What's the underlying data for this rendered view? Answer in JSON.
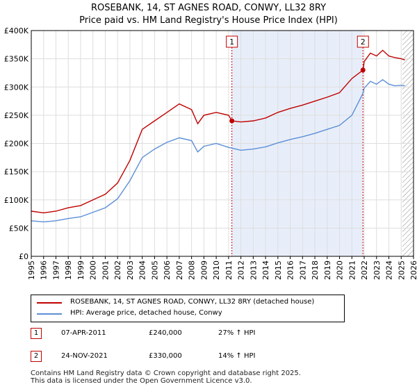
{
  "title": "ROSEBANK, 14, ST AGNES ROAD, CONWY, LL32 8RY",
  "subtitle": "Price paid vs. HM Land Registry's House Price Index (HPI)",
  "colors": {
    "price": "#c00000",
    "hpi": "#5b8ed6",
    "shade": "#e8eef9",
    "grid": "#dddddd",
    "hatch": "#999999"
  },
  "chart_data": {
    "type": "line",
    "title": "ROSEBANK, 14, ST AGNES ROAD, CONWY, LL32 8RY",
    "subtitle": "Price paid vs. HM Land Registry's House Price Index (HPI)",
    "xlabel": "",
    "ylabel": "",
    "xlim": [
      1995,
      2026
    ],
    "ylim": [
      0,
      400000
    ],
    "x_ticks": [
      "1995",
      "1996",
      "1997",
      "1998",
      "1999",
      "2000",
      "2001",
      "2002",
      "2003",
      "2004",
      "2005",
      "2006",
      "2007",
      "2008",
      "2009",
      "2010",
      "2011",
      "2012",
      "2013",
      "2014",
      "2015",
      "2016",
      "2017",
      "2018",
      "2019",
      "2020",
      "2021",
      "2022",
      "2023",
      "2024",
      "2025",
      "2026"
    ],
    "y_ticks": [
      {
        "value": 0,
        "label": "£0"
      },
      {
        "value": 50000,
        "label": "£50K"
      },
      {
        "value": 100000,
        "label": "£100K"
      },
      {
        "value": 150000,
        "label": "£150K"
      },
      {
        "value": 200000,
        "label": "£200K"
      },
      {
        "value": 250000,
        "label": "£250K"
      },
      {
        "value": 300000,
        "label": "£300K"
      },
      {
        "value": 350000,
        "label": "£350K"
      },
      {
        "value": 400000,
        "label": "£400K"
      }
    ],
    "grid": true,
    "shaded_span": [
      2011.27,
      2021.9
    ],
    "hatched_from": 2025.1,
    "series": [
      {
        "name": "ROSEBANK, 14, ST AGNES ROAD, CONWY, LL32 8RY (detached house)",
        "x": [
          1995,
          1996,
          1997,
          1998,
          1999,
          2000,
          2001,
          2002,
          2003,
          2004,
          2005,
          2006,
          2007,
          2008,
          2008.5,
          2009,
          2010,
          2011,
          2011.27,
          2012,
          2013,
          2014,
          2015,
          2016,
          2017,
          2018,
          2019,
          2020,
          2021,
          2021.9,
          2022,
          2022.5,
          2023,
          2023.5,
          2024,
          2024.5,
          2025,
          2025.3
        ],
        "values": [
          80000,
          77000,
          80000,
          86000,
          90000,
          100000,
          110000,
          130000,
          170000,
          225000,
          240000,
          255000,
          270000,
          260000,
          235000,
          250000,
          255000,
          250000,
          240000,
          238000,
          240000,
          245000,
          255000,
          262000,
          268000,
          275000,
          282000,
          290000,
          315000,
          330000,
          345000,
          360000,
          355000,
          365000,
          355000,
          352000,
          350000,
          348000
        ]
      },
      {
        "name": "HPI: Average price, detached house, Conwy",
        "x": [
          1995,
          1996,
          1997,
          1998,
          1999,
          2000,
          2001,
          2002,
          2003,
          2004,
          2005,
          2006,
          2007,
          2008,
          2008.5,
          2009,
          2010,
          2011,
          2012,
          2013,
          2014,
          2015,
          2016,
          2017,
          2018,
          2019,
          2020,
          2021,
          2021.9,
          2022,
          2022.5,
          2023,
          2023.5,
          2024,
          2024.5,
          2025,
          2025.3
        ],
        "values": [
          63000,
          61000,
          63000,
          67000,
          70000,
          78000,
          86000,
          102000,
          134000,
          175000,
          190000,
          202000,
          210000,
          205000,
          185000,
          195000,
          200000,
          193000,
          188000,
          190000,
          194000,
          201000,
          207000,
          212000,
          218000,
          225000,
          232000,
          250000,
          289000,
          298000,
          310000,
          305000,
          313000,
          305000,
          302000,
          303000,
          302000
        ]
      }
    ],
    "annotations": [
      {
        "label": "1",
        "x": 2011.27,
        "value": 240000
      },
      {
        "label": "2",
        "x": 2021.9,
        "value": 330000
      }
    ]
  },
  "legend": {
    "price_label": "ROSEBANK, 14, ST AGNES ROAD, CONWY, LL32 8RY (detached house)",
    "hpi_label": "HPI: Average price, detached house, Conwy"
  },
  "sales": [
    {
      "num": "1",
      "date": "07-APR-2011",
      "price": "£240,000",
      "hpi": "27% ↑ HPI"
    },
    {
      "num": "2",
      "date": "24-NOV-2021",
      "price": "£330,000",
      "hpi": "14% ↑ HPI"
    }
  ],
  "footer": {
    "line1": "Contains HM Land Registry data © Crown copyright and database right 2025.",
    "line2": "This data is licensed under the Open Government Licence v3.0."
  }
}
